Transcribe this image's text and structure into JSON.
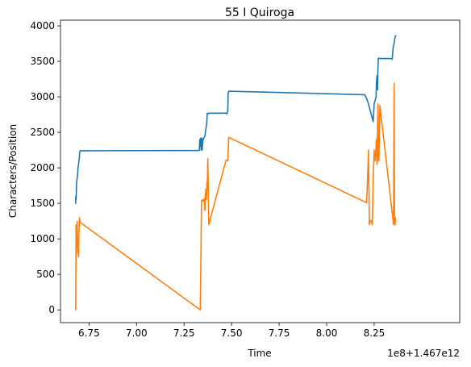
{
  "chart_data": {
    "type": "line",
    "title": "55 I Quiroga",
    "xlabel": "Time",
    "ylabel": "Characters/Position",
    "x_offset_label": "1e8+1.467e12",
    "xlim": [
      6.6,
      8.7
    ],
    "ylim": [
      -180,
      4080
    ],
    "x_ticks": [
      6.75,
      7.0,
      7.25,
      7.5,
      7.75,
      8.0,
      8.25
    ],
    "x_tick_labels": [
      "6.75",
      "7.00",
      "7.25",
      "7.50",
      "7.75",
      "8.00",
      "8.25"
    ],
    "y_ticks": [
      0,
      500,
      1000,
      1500,
      2000,
      2500,
      3000,
      3500,
      4000
    ],
    "y_tick_labels": [
      "0",
      "500",
      "1000",
      "1500",
      "2000",
      "2500",
      "3000",
      "3500",
      "4000"
    ],
    "grid": false,
    "series": [
      {
        "color": "#1f77b4",
        "x": [
          6.68,
          6.68,
          6.682,
          6.685,
          6.69,
          6.692,
          6.695,
          6.697,
          6.7,
          6.7,
          6.703,
          7.33,
          7.333,
          7.335,
          7.338,
          7.34,
          7.343,
          7.345,
          7.348,
          7.35,
          7.36,
          7.365,
          7.37,
          7.372,
          7.375,
          7.38,
          7.47,
          7.475,
          7.48,
          7.482,
          7.485,
          8.2,
          8.21,
          8.22,
          8.23,
          8.24,
          8.245,
          8.25,
          8.255,
          8.26,
          8.262,
          8.265,
          8.268,
          8.27,
          8.272,
          8.275,
          8.28,
          8.34,
          8.345,
          8.35,
          8.355,
          8.36,
          8.365
        ],
        "y": [
          1500,
          1600,
          1550,
          1800,
          1900,
          2000,
          2050,
          2100,
          2150,
          2200,
          2240,
          2245,
          2400,
          2300,
          2420,
          2250,
          2420,
          2250,
          2350,
          2400,
          2450,
          2550,
          2650,
          2770,
          2760,
          2770,
          2770,
          2760,
          2800,
          3050,
          3080,
          3030,
          2980,
          2900,
          2800,
          2700,
          2650,
          2900,
          2950,
          3000,
          3200,
          3300,
          3100,
          3400,
          3540,
          3545,
          3540,
          3540,
          3530,
          3700,
          3750,
          3850,
          3860
        ]
      },
      {
        "color": "#ff7f0e",
        "x": [
          6.68,
          6.682,
          6.685,
          6.688,
          6.69,
          6.692,
          6.695,
          6.697,
          6.7,
          6.703,
          6.705,
          7.335,
          7.337,
          7.34,
          7.342,
          7.345,
          7.35,
          7.355,
          7.36,
          7.362,
          7.365,
          7.368,
          7.37,
          7.372,
          7.375,
          7.38,
          7.47,
          7.475,
          7.48,
          7.485,
          8.21,
          8.215,
          8.22,
          8.225,
          8.23,
          8.235,
          8.24,
          8.245,
          8.25,
          8.255,
          8.26,
          8.262,
          8.265,
          8.268,
          8.27,
          8.272,
          8.275,
          8.28,
          8.35,
          8.352,
          8.355,
          8.357,
          8.36,
          8.362
        ],
        "y": [
          0,
          1200,
          900,
          1250,
          800,
          1000,
          750,
          1100,
          1300,
          1250,
          1230,
          0,
          350,
          1100,
          1540,
          1550,
          1530,
          1560,
          1400,
          1600,
          1700,
          1550,
          1800,
          1700,
          2130,
          1200,
          2100,
          2110,
          2100,
          2430,
          1510,
          1800,
          2250,
          1200,
          1260,
          1250,
          1200,
          1850,
          2250,
          2100,
          2300,
          2400,
          2050,
          2600,
          2900,
          2100,
          2100,
          2880,
          1250,
          1200,
          3190,
          1250,
          1200,
          1300
        ]
      }
    ]
  }
}
